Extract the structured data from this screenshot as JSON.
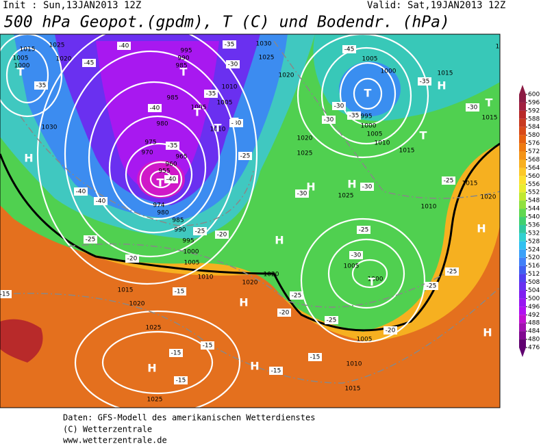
{
  "header": {
    "init": "Init : Sun,13JAN2013 12Z",
    "valid": "Valid: Sat,19JAN2013 12Z",
    "title": "500 hPa Geopot.(gpdm), T (C) und Bodendr. (hPa)"
  },
  "map": {
    "pressure_labels": [
      "1015",
      "1025",
      "1020",
      "1005",
      "1000",
      "995",
      "990",
      "985",
      "1030",
      "1025",
      "1020",
      "1010",
      "1005",
      "1000",
      "995",
      "1000",
      "1005",
      "1010",
      "1015",
      "1030",
      "985",
      "980",
      "975",
      "970",
      "965",
      "960",
      "955",
      "974",
      "980",
      "985",
      "990",
      "995",
      "1000",
      "1005",
      "1010",
      "1015",
      "1020",
      "1020",
      "1020",
      "1025",
      "1025",
      "1015",
      "1010",
      "1005",
      "1005",
      "1000",
      "1025",
      "1025",
      "1020",
      "1015",
      "1020",
      "1010",
      "1015",
      "1015",
      "1005",
      "1005",
      "1010",
      "1010"
    ],
    "temperature_labels": [
      "-40",
      "-45",
      "-35",
      "-40",
      "-35",
      "-30",
      "-35",
      "-30",
      "-35",
      "-40",
      "-40",
      "-40",
      "-25",
      "-25",
      "-20",
      "-20",
      "-25",
      "-15",
      "-15",
      "-15",
      "-15",
      "-15",
      "-15",
      "-20",
      "-25",
      "-25",
      "-20",
      "-25",
      "-25",
      "-25",
      "-30",
      "-30",
      "-30",
      "-25",
      "-30",
      "-35",
      "-30",
      "-35",
      "-30",
      "-45",
      "-15"
    ],
    "centers": [
      "T",
      "T",
      "T",
      "T",
      "T",
      "T",
      "T",
      "T",
      "T",
      "H",
      "H",
      "H",
      "H",
      "H",
      "H",
      "H",
      "H",
      "H",
      "H",
      "T"
    ]
  },
  "colorbar": {
    "ticks": [
      600,
      596,
      592,
      588,
      584,
      580,
      576,
      572,
      568,
      564,
      560,
      556,
      552,
      548,
      544,
      540,
      536,
      532,
      528,
      524,
      520,
      516,
      512,
      508,
      504,
      500,
      496,
      492,
      488,
      484,
      480,
      476
    ],
    "colors": [
      "#8c1c44",
      "#a02040",
      "#b82a2a",
      "#c83a20",
      "#d84a18",
      "#e66010",
      "#ee7a10",
      "#f49418",
      "#f8b020",
      "#fcc828",
      "#fce030",
      "#e8ec30",
      "#c0e830",
      "#90e040",
      "#60d850",
      "#40d070",
      "#30c8a0",
      "#30d0d0",
      "#30c0f0",
      "#3aa0f8",
      "#4080f8",
      "#4060f0",
      "#5040f0",
      "#6830f0",
      "#8020f0",
      "#9818f0",
      "#b010f0",
      "#c010d0",
      "#a010b0",
      "#800890",
      "#600070"
    ]
  },
  "footer": [
    "Daten: GFS-Modell des amerikanischen Wetterdienstes",
    "(C) Wetterzentrale",
    "www.wetterzentrale.de"
  ]
}
